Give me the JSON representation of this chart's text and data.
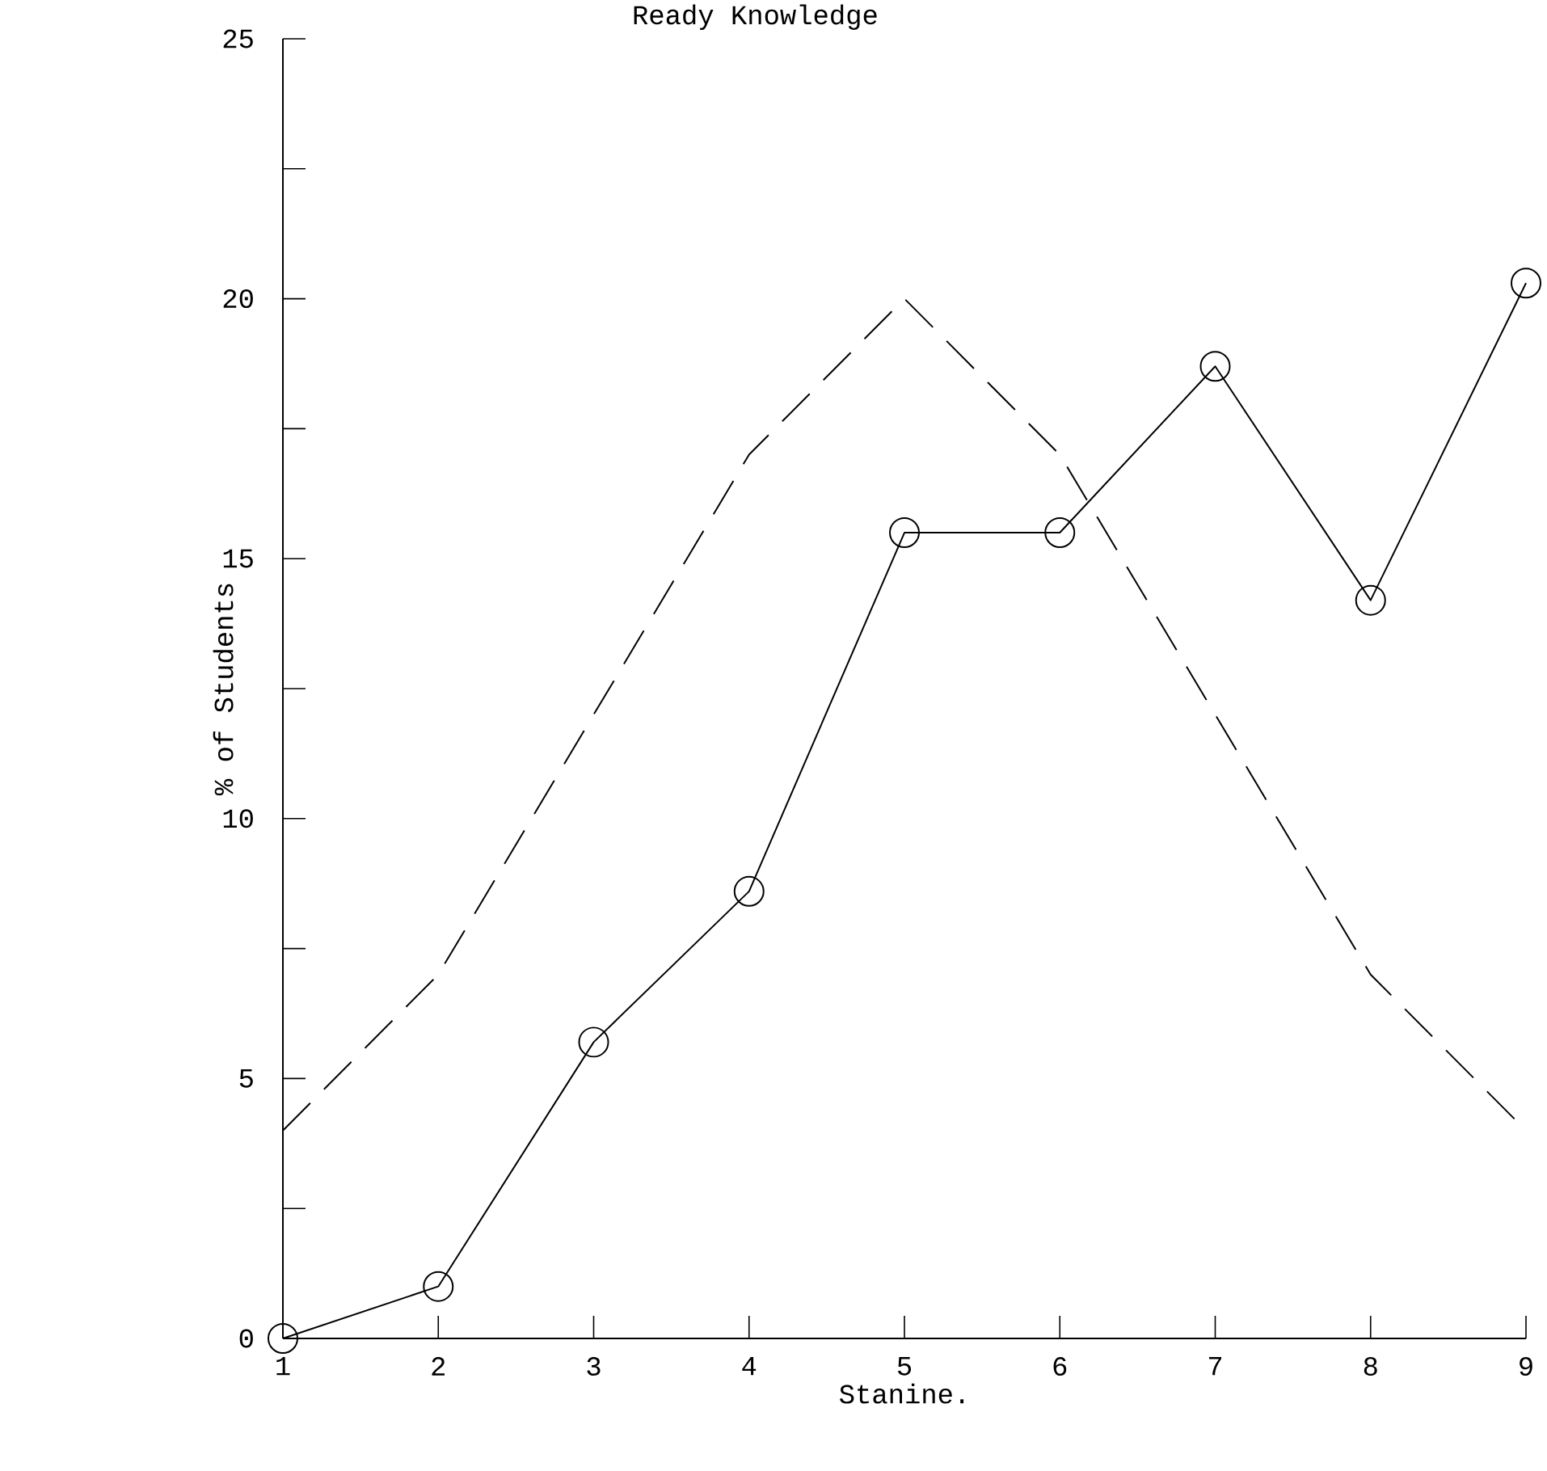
{
  "chart_data": {
    "type": "line",
    "title": "Ready Knowledge",
    "xlabel": "Stanine.",
    "ylabel": "% of Students",
    "x": [
      1,
      2,
      3,
      4,
      5,
      6,
      7,
      8,
      9
    ],
    "series": [
      {
        "color": "#000000",
        "line_style": "dashed",
        "marker": "none",
        "values": [
          4,
          7,
          12,
          17,
          20,
          17,
          12,
          7,
          4
        ]
      },
      {
        "color": "#000000",
        "line_style": "solid",
        "marker": "circle",
        "values": [
          0,
          1.0,
          5.7,
          8.6,
          15.5,
          15.5,
          18.7,
          14.2,
          20.3
        ]
      }
    ],
    "xlim": [
      1,
      9
    ],
    "ylim": [
      0,
      25
    ],
    "xticks": [
      1,
      2,
      3,
      4,
      5,
      6,
      7,
      8,
      9
    ],
    "yticks": [
      0,
      {
        "value": 2.5,
        "label": null
      },
      5,
      {
        "value": 7.5,
        "label": null
      },
      10,
      {
        "value": 12.5,
        "label": null
      },
      15,
      {
        "value": 17.5,
        "label": null
      },
      20,
      {
        "value": 22.5,
        "label": null
      },
      25
    ]
  }
}
